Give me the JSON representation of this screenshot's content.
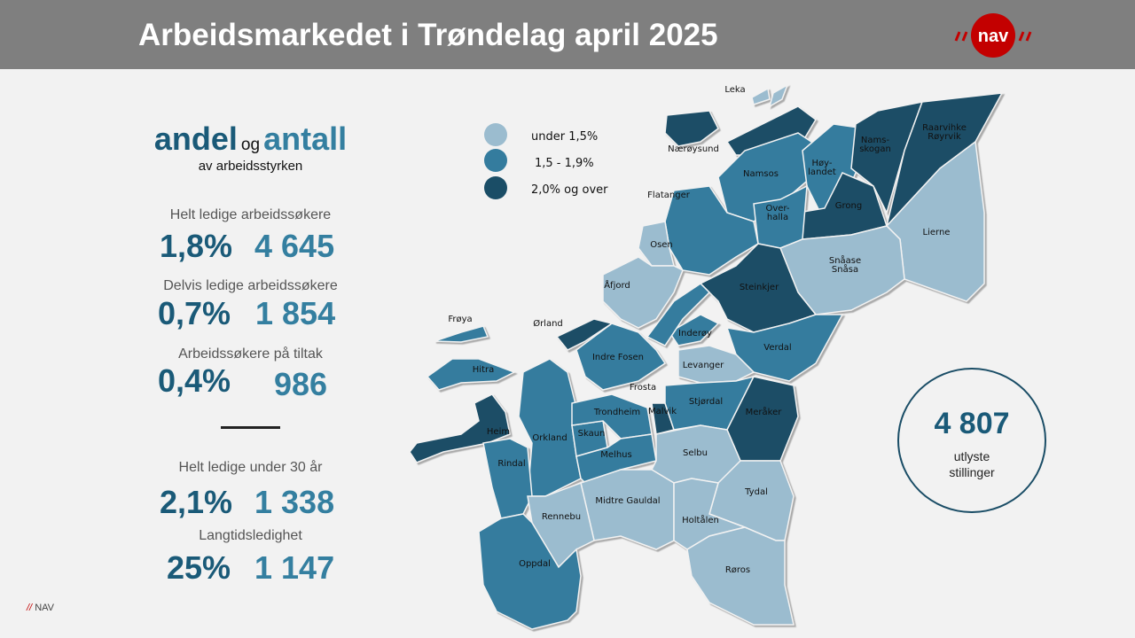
{
  "header": {
    "title": "Arbeidsmarkedet i Trøndelag april 2025",
    "logo_text": "nav"
  },
  "heading": {
    "andel": "andel",
    "og": "og",
    "antall": "antall",
    "subtitle": "av arbeidsstyrken"
  },
  "stats": [
    {
      "label": "Helt ledige arbeidssøkere",
      "percent": "1,8%",
      "count": "4 645"
    },
    {
      "label": "Delvis ledige arbeidssøkere",
      "percent": "0,7%",
      "count": "1 854"
    },
    {
      "label": "Arbeidssøkere på tiltak",
      "percent": "0,4%",
      "count": "986"
    },
    {
      "label": "Helt ledige under 30 år",
      "percent": "2,1%",
      "count": "1 338"
    },
    {
      "label": "Langtidsledighet",
      "percent": "25%",
      "count": "1 147"
    }
  ],
  "footer": {
    "slashes": "//",
    "text": "NAV"
  },
  "legend": [
    {
      "key": "low",
      "label": "under 1,5%",
      "color": "#9bbccf"
    },
    {
      "key": "mid",
      "label": "1,5 - 1,9%",
      "color": "#347c9e"
    },
    {
      "key": "high",
      "label": "2,0% og over",
      "color": "#1a4d66"
    }
  ],
  "postings": {
    "count": "4 807",
    "line1": "utlyste",
    "line2": "stillinger"
  },
  "municipalities": [
    {
      "label": [
        "Leka"
      ],
      "category": "low"
    },
    {
      "label": [
        "Nærøysund"
      ],
      "category": "high"
    },
    {
      "label": [
        "Namsos"
      ],
      "category": "mid"
    },
    {
      "label": [
        "Høy-",
        "landet"
      ],
      "category": "mid"
    },
    {
      "label": [
        "Nams-",
        "skogan"
      ],
      "category": "high"
    },
    {
      "label": [
        "Raarvihke",
        "Røyrvik"
      ],
      "category": "high"
    },
    {
      "label": [
        "Grong"
      ],
      "category": "high"
    },
    {
      "label": [
        "Over-",
        "halla"
      ],
      "category": "mid"
    },
    {
      "label": [
        "Flatanger"
      ],
      "category": "mid"
    },
    {
      "label": [
        "Osen"
      ],
      "category": "low"
    },
    {
      "label": [
        "Lierne"
      ],
      "category": "low"
    },
    {
      "label": [
        "Snåase",
        "Snåsa"
      ],
      "category": "low"
    },
    {
      "label": [
        "Steinkjer"
      ],
      "category": "high"
    },
    {
      "label": [
        "Åfjord"
      ],
      "category": "low"
    },
    {
      "label": [
        "Inderøy"
      ],
      "category": "mid"
    },
    {
      "label": [
        "Verdal"
      ],
      "category": "mid"
    },
    {
      "label": [
        "Levanger"
      ],
      "category": "low"
    },
    {
      "label": [
        "Indre Fosen"
      ],
      "category": "mid"
    },
    {
      "label": [
        "Ørland"
      ],
      "category": "high"
    },
    {
      "label": [
        "Frøya"
      ],
      "category": "mid"
    },
    {
      "label": [
        "Hitra"
      ],
      "category": "mid"
    },
    {
      "label": [
        "Frosta"
      ],
      "category": null
    },
    {
      "label": [
        "Heim"
      ],
      "category": "high"
    },
    {
      "label": [
        "Orkland"
      ],
      "category": "mid"
    },
    {
      "label": [
        "Skaun"
      ],
      "category": "mid"
    },
    {
      "label": [
        "Trondheim"
      ],
      "category": "mid"
    },
    {
      "label": [
        "Malvik"
      ],
      "category": "high"
    },
    {
      "label": [
        "Melhus"
      ],
      "category": "mid"
    },
    {
      "label": [
        "Stjørdal"
      ],
      "category": "mid"
    },
    {
      "label": [
        "Meråker"
      ],
      "category": "high"
    },
    {
      "label": [
        "Selbu"
      ],
      "category": "low"
    },
    {
      "label": [
        "Rindal"
      ],
      "category": "mid"
    },
    {
      "label": [
        "Tydal"
      ],
      "category": "low"
    },
    {
      "label": [
        "Midtre Gauldal"
      ],
      "category": "low"
    },
    {
      "label": [
        "Holtålen"
      ],
      "category": "low"
    },
    {
      "label": [
        "Rennebu"
      ],
      "category": "low"
    },
    {
      "label": [
        "Oppdal"
      ],
      "category": "mid"
    },
    {
      "label": [
        "Røros"
      ],
      "category": "low"
    }
  ]
}
